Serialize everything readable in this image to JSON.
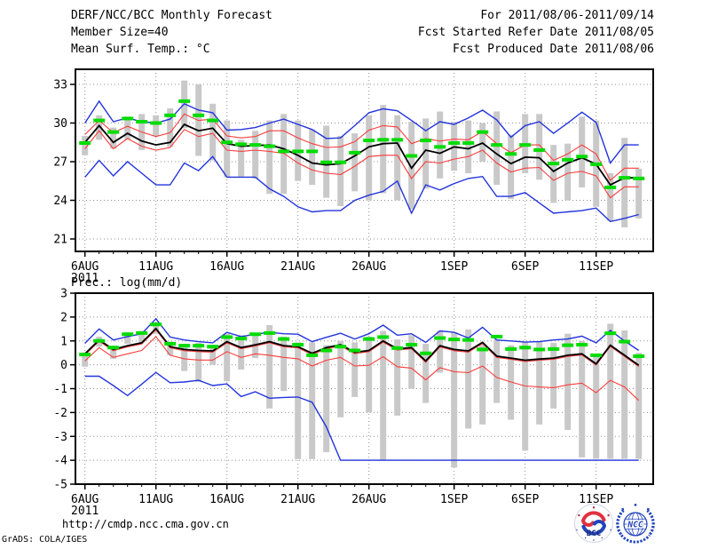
{
  "header": {
    "title": "DERF/NCC/BCC Monthly Forecast",
    "member_size": "Member Size=40",
    "for_range": "For 2011/08/06-2011/09/14",
    "fcst_started": "Fcst Started Refer Date 2011/08/05",
    "fcst_produced": "Fcst Produced Date 2011/08/06"
  },
  "footer": {
    "url": "http://cmdp.ncc.cma.gov.cn",
    "credit": "GrADS: COLA/IGES",
    "bcc_label": "BCC",
    "ncc_label": "NCC"
  },
  "colors": {
    "max_min_line": "#2233dd",
    "quartile_line": "#fa3c3c",
    "mean_line": "#000000",
    "climatology": "#00dc00",
    "spread_bar": "#c9c9c9",
    "grid": "#909090",
    "axis": "#000000"
  },
  "chart_data": [
    {
      "type": "line",
      "name": "temperature",
      "title": "Mean Surf. Temp.: °C",
      "n_points": 40,
      "ylim": [
        20.0,
        34.3
      ],
      "y_ticks": [
        33,
        30,
        27,
        24,
        21
      ],
      "x_ticks": [
        {
          "label": "6AUG",
          "index": 0,
          "sub": "2011"
        },
        {
          "label": "11AUG",
          "index": 5
        },
        {
          "label": "16AUG",
          "index": 10
        },
        {
          "label": "21AUG",
          "index": 15
        },
        {
          "label": "26AUG",
          "index": 20
        },
        {
          "label": "1SEP",
          "index": 26
        },
        {
          "label": "6SEP",
          "index": 31
        },
        {
          "label": "11SEP",
          "index": 36
        }
      ],
      "spread_bars": [
        [
          29.0,
          27.5
        ],
        [
          30.6,
          28.7
        ],
        [
          29.65,
          28.0
        ],
        [
          30.5,
          28.7
        ],
        [
          30.7,
          27.9
        ],
        [
          30.6,
          29.0
        ],
        [
          31.15,
          28.15
        ],
        [
          33.3,
          29.6
        ],
        [
          33.0,
          27.45
        ],
        [
          31.5,
          27.1
        ],
        [
          30.2,
          25.8
        ],
        [
          28.7,
          25.85
        ],
        [
          29.4,
          25.7
        ],
        [
          30.2,
          24.5
        ],
        [
          30.7,
          24.5
        ],
        [
          30.2,
          25.5
        ],
        [
          29.5,
          25.2
        ],
        [
          29.8,
          24.2
        ],
        [
          29.0,
          23.55
        ],
        [
          29.2,
          24.7
        ],
        [
          30.6,
          24.0
        ],
        [
          31.4,
          24.55
        ],
        [
          30.6,
          24.0
        ],
        [
          30.1,
          23.3
        ],
        [
          30.35,
          24.9
        ],
        [
          30.9,
          25.7
        ],
        [
          30.1,
          26.3
        ],
        [
          30.2,
          26.1
        ],
        [
          30.0,
          27.0
        ],
        [
          30.9,
          25.2
        ],
        [
          29.1,
          24.1
        ],
        [
          30.7,
          26.1
        ],
        [
          30.7,
          25.6
        ],
        [
          28.3,
          23.8
        ],
        [
          28.4,
          24.0
        ],
        [
          30.5,
          25.0
        ],
        [
          30.2,
          23.5
        ],
        [
          26.1,
          22.4
        ],
        [
          28.85,
          21.9
        ],
        [
          26.45,
          22.6
        ]
      ],
      "series": [
        {
          "name": "min",
          "color": "#2233dd",
          "width": 1.4,
          "values": [
            25.8,
            27.1,
            25.9,
            27.0,
            26.1,
            25.2,
            25.2,
            26.9,
            26.3,
            27.4,
            25.8,
            25.8,
            25.8,
            24.9,
            24.3,
            23.5,
            23.1,
            23.2,
            23.2,
            24.0,
            24.4,
            24.7,
            25.5,
            23.0,
            25.2,
            24.8,
            25.3,
            25.7,
            25.85,
            24.3,
            24.3,
            24.6,
            23.8,
            23.0,
            23.1,
            23.2,
            23.4,
            22.35,
            22.6,
            22.9
          ]
        },
        {
          "name": "max",
          "color": "#2233dd",
          "width": 1.4,
          "values": [
            30.0,
            31.7,
            30.1,
            30.4,
            30.1,
            30.0,
            30.3,
            31.5,
            31.0,
            30.8,
            29.45,
            29.5,
            29.65,
            30.0,
            30.3,
            29.9,
            29.5,
            28.8,
            28.85,
            29.8,
            30.8,
            31.1,
            30.95,
            30.2,
            29.4,
            30.1,
            29.9,
            30.4,
            31.0,
            30.25,
            28.9,
            29.8,
            30.1,
            29.2,
            30.0,
            30.85,
            30.05,
            26.9,
            28.3,
            28.3
          ]
        },
        {
          "name": "lower",
          "color": "#fa3c3c",
          "width": 1.1,
          "values": [
            28.0,
            29.4,
            28.0,
            28.8,
            28.2,
            27.9,
            28.1,
            29.5,
            28.95,
            29.2,
            27.9,
            27.8,
            27.9,
            27.8,
            27.65,
            26.9,
            26.35,
            26.1,
            26.0,
            26.65,
            27.4,
            27.5,
            27.5,
            25.7,
            27.0,
            26.9,
            27.2,
            27.4,
            27.9,
            26.9,
            26.2,
            26.5,
            26.55,
            25.55,
            26.1,
            26.25,
            25.9,
            24.2,
            25.05,
            25.05
          ]
        },
        {
          "name": "upper",
          "color": "#fa3c3c",
          "width": 1.1,
          "values": [
            29.1,
            30.2,
            29.25,
            29.75,
            29.3,
            28.95,
            29.25,
            30.7,
            30.2,
            30.3,
            29.0,
            28.85,
            28.95,
            29.4,
            29.4,
            28.85,
            28.4,
            28.1,
            28.15,
            28.55,
            29.45,
            29.8,
            29.7,
            28.4,
            28.8,
            28.6,
            28.75,
            28.7,
            29.35,
            28.4,
            27.7,
            28.3,
            28.3,
            27.1,
            27.6,
            28.3,
            27.6,
            25.55,
            26.5,
            26.5
          ]
        },
        {
          "name": "mean",
          "color": "#000000",
          "width": 1.8,
          "values": [
            28.5,
            29.8,
            28.5,
            29.2,
            28.6,
            28.3,
            28.5,
            29.9,
            29.4,
            29.6,
            28.4,
            28.2,
            28.25,
            28.3,
            28.0,
            27.5,
            26.9,
            26.75,
            26.85,
            27.45,
            28.15,
            28.4,
            28.45,
            26.5,
            27.9,
            27.65,
            28.15,
            28.0,
            28.45,
            27.6,
            26.85,
            27.35,
            27.3,
            26.25,
            26.9,
            27.3,
            26.8,
            25.2,
            25.75,
            25.75
          ]
        },
        {
          "name": "climatology",
          "style": "dash-marks",
          "color": "#00dc00",
          "width": 4,
          "values": [
            28.45,
            30.2,
            29.3,
            30.35,
            30.1,
            30.0,
            30.6,
            31.7,
            30.6,
            30.2,
            28.5,
            28.35,
            28.3,
            28.2,
            27.8,
            27.8,
            27.8,
            26.95,
            26.95,
            27.7,
            28.65,
            28.7,
            28.7,
            27.45,
            28.65,
            28.15,
            28.45,
            28.45,
            29.3,
            28.3,
            27.6,
            28.3,
            27.9,
            26.85,
            27.15,
            27.4,
            26.8,
            25.0,
            25.75,
            25.7
          ]
        }
      ]
    },
    {
      "type": "line",
      "name": "precipitation",
      "title": "Prec.: log(mm/d)",
      "n_points": 40,
      "ylim": [
        -5,
        3
      ],
      "y_ticks": [
        3,
        2,
        1,
        0,
        -1,
        -2,
        -3,
        -4,
        -5
      ],
      "x_ticks": [
        {
          "label": "6AUG",
          "index": 0,
          "sub": "2011"
        },
        {
          "label": "11AUG",
          "index": 5
        },
        {
          "label": "16AUG",
          "index": 10
        },
        {
          "label": "21AUG",
          "index": 15
        },
        {
          "label": "26AUG",
          "index": 20
        },
        {
          "label": "1SEP",
          "index": 26
        },
        {
          "label": "6SEP",
          "index": 31
        },
        {
          "label": "11SEP",
          "index": 36
        }
      ],
      "spread_bars": [
        [
          0.52,
          -0.08
        ],
        [
          1.18,
          0.76
        ],
        [
          0.8,
          0.25
        ],
        [
          1.36,
          0.88
        ],
        [
          1.42,
          0.94
        ],
        [
          1.78,
          1.3
        ],
        [
          0.97,
          0.4
        ],
        [
          0.88,
          -0.26
        ],
        [
          0.92,
          -0.72
        ],
        [
          0.84,
          0.0
        ],
        [
          1.3,
          -0.69
        ],
        [
          1.24,
          -0.2
        ],
        [
          1.33,
          0.28
        ],
        [
          1.66,
          -1.83
        ],
        [
          1.18,
          -1.1
        ],
        [
          0.94,
          -3.95
        ],
        [
          0.94,
          -3.95
        ],
        [
          0.82,
          -3.66
        ],
        [
          1.0,
          -2.2
        ],
        [
          0.94,
          -1.35
        ],
        [
          1.18,
          -2.0
        ],
        [
          1.42,
          -4.0
        ],
        [
          1.06,
          -2.13
        ],
        [
          1.24,
          -1.0
        ],
        [
          0.88,
          -1.6
        ],
        [
          1.42,
          -0.33
        ],
        [
          1.36,
          -4.3
        ],
        [
          1.48,
          -2.67
        ],
        [
          0.9,
          -2.5
        ],
        [
          1.06,
          -1.6
        ],
        [
          0.82,
          -2.3
        ],
        [
          0.94,
          -3.6
        ],
        [
          0.97,
          -2.5
        ],
        [
          0.92,
          -1.83
        ],
        [
          1.3,
          -2.73
        ],
        [
          1.0,
          -3.88
        ],
        [
          0.46,
          -3.94
        ],
        [
          1.72,
          -3.94
        ],
        [
          1.44,
          -3.94
        ],
        [
          0.5,
          -3.94
        ]
      ],
      "series": [
        {
          "name": "min",
          "color": "#2233dd",
          "width": 1.4,
          "values": [
            -0.48,
            -0.48,
            -0.87,
            -1.29,
            -0.81,
            -0.32,
            -0.75,
            -0.72,
            -0.65,
            -0.87,
            -0.8,
            -1.33,
            -1.13,
            -1.4,
            -1.37,
            -1.35,
            -1.57,
            -2.6,
            -4.0,
            -4.0,
            -4.0,
            -4.0,
            -4.0,
            -4.0,
            -4.0,
            -4.0,
            -4.0,
            -4.0,
            -4.0,
            -4.0,
            -4.0,
            -4.0,
            -4.0,
            -4.0,
            -4.0,
            -4.0,
            -4.0,
            -4.0,
            -4.0,
            -4.0
          ]
        },
        {
          "name": "max",
          "color": "#2233dd",
          "width": 1.4,
          "values": [
            0.9,
            1.5,
            1.04,
            1.18,
            1.3,
            1.93,
            1.16,
            1.04,
            0.97,
            0.92,
            1.36,
            1.18,
            1.28,
            1.36,
            1.3,
            1.28,
            0.97,
            1.15,
            1.32,
            1.08,
            1.3,
            1.66,
            1.24,
            1.3,
            0.94,
            1.42,
            1.36,
            1.12,
            1.57,
            1.04,
            1.0,
            0.95,
            0.97,
            1.04,
            1.08,
            1.2,
            0.92,
            1.44,
            1.0,
            0.6
          ]
        },
        {
          "name": "lower",
          "color": "#fa3c3c",
          "width": 1.1,
          "values": [
            0.16,
            0.72,
            0.31,
            0.46,
            0.6,
            1.18,
            0.4,
            0.25,
            0.2,
            0.2,
            0.55,
            0.31,
            0.46,
            0.4,
            0.31,
            0.25,
            -0.05,
            0.19,
            0.31,
            -0.05,
            -0.02,
            0.34,
            -0.08,
            -0.14,
            -0.63,
            -0.12,
            -0.29,
            -0.33,
            -0.05,
            -0.53,
            -0.72,
            -0.89,
            -0.93,
            -0.96,
            -0.84,
            -0.77,
            -1.17,
            -0.65,
            -0.93,
            -1.49
          ]
        },
        {
          "name": "upper",
          "color": "#fa3c3c",
          "width": 1.1,
          "values": [
            0.41,
            0.99,
            0.59,
            0.75,
            0.87,
            1.47,
            0.71,
            0.59,
            0.55,
            0.53,
            0.92,
            0.67,
            0.79,
            0.92,
            0.75,
            0.71,
            0.43,
            0.67,
            0.79,
            0.47,
            0.55,
            0.95,
            0.62,
            0.67,
            0.11,
            0.75,
            0.59,
            0.53,
            0.89,
            0.31,
            0.23,
            0.14,
            0.19,
            0.23,
            0.35,
            0.41,
            -0.01,
            0.77,
            0.35,
            -0.07
          ]
        },
        {
          "name": "mean",
          "color": "#000000",
          "width": 1.8,
          "values": [
            0.46,
            1.04,
            0.64,
            0.8,
            0.92,
            1.52,
            0.76,
            0.64,
            0.6,
            0.58,
            0.97,
            0.72,
            0.84,
            0.97,
            0.8,
            0.76,
            0.48,
            0.72,
            0.84,
            0.52,
            0.6,
            1.0,
            0.67,
            0.72,
            0.16,
            0.8,
            0.64,
            0.58,
            0.94,
            0.36,
            0.28,
            0.19,
            0.24,
            0.28,
            0.4,
            0.46,
            0.04,
            0.82,
            0.4,
            -0.02
          ]
        },
        {
          "name": "climatology",
          "style": "dash-marks",
          "color": "#00dc00",
          "width": 4,
          "values": [
            0.43,
            1.0,
            0.72,
            1.28,
            1.33,
            1.69,
            0.88,
            0.8,
            0.8,
            0.76,
            1.16,
            1.1,
            1.28,
            1.33,
            1.08,
            0.84,
            0.4,
            0.6,
            0.76,
            0.6,
            1.08,
            1.16,
            0.7,
            0.84,
            0.48,
            1.12,
            1.06,
            1.04,
            0.64,
            1.18,
            0.66,
            0.72,
            0.64,
            0.66,
            0.82,
            0.84,
            0.4,
            1.32,
            0.97,
            0.36
          ]
        }
      ]
    }
  ]
}
